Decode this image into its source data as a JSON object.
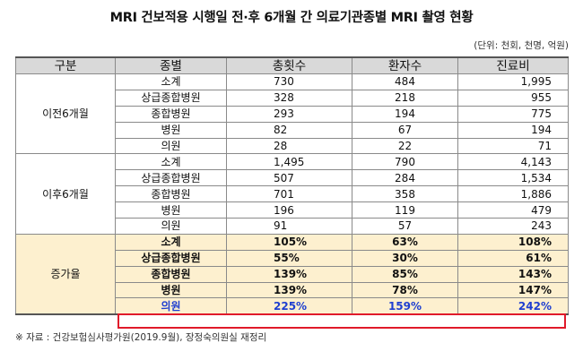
{
  "title": "MRI 건보적용 시행일 전·후 6개월 간 의료기관종별 MRI 촬영 현황",
  "unit": "(단위: 천회, 천명, 억원)",
  "headers": [
    "구분",
    "종별",
    "총횟수",
    "환자수",
    "진료비"
  ],
  "groups": [
    {
      "label": "이전6개월",
      "rows": [
        {
          "kind": "소계",
          "count": "730",
          "patients": "484",
          "cost": "1,995"
        },
        {
          "kind": "상급종합병원",
          "count": "328",
          "patients": "218",
          "cost": "955"
        },
        {
          "kind": "종합병원",
          "count": "293",
          "patients": "194",
          "cost": "775"
        },
        {
          "kind": "병원",
          "count": "82",
          "patients": "67",
          "cost": "194"
        },
        {
          "kind": "의원",
          "count": "28",
          "patients": "22",
          "cost": "71"
        }
      ]
    },
    {
      "label": "이후6개월",
      "rows": [
        {
          "kind": "소계",
          "count": "1,495",
          "patients": "790",
          "cost": "4,143"
        },
        {
          "kind": "상급종합병원",
          "count": "507",
          "patients": "284",
          "cost": "1,534"
        },
        {
          "kind": "종합병원",
          "count": "701",
          "patients": "358",
          "cost": "1,886"
        },
        {
          "kind": "병원",
          "count": "196",
          "patients": "119",
          "cost": "479"
        },
        {
          "kind": "의원",
          "count": "91",
          "patients": "57",
          "cost": "243"
        }
      ]
    },
    {
      "label": "증가율",
      "rows": [
        {
          "kind": "소계",
          "count": "105%",
          "patients": "63%",
          "cost": "108%"
        },
        {
          "kind": "상급종합병원",
          "count": "55%",
          "patients": "30%",
          "cost": "61%"
        },
        {
          "kind": "종합병원",
          "count": "139%",
          "patients": "85%",
          "cost": "143%"
        },
        {
          "kind": "병원",
          "count": "139%",
          "patients": "78%",
          "cost": "147%"
        },
        {
          "kind": "의원",
          "count": "225%",
          "patients": "159%",
          "cost": "242%"
        }
      ]
    }
  ],
  "highlight_color": "#e01a2a",
  "increase_bg": "#fdf0cf",
  "source": "※ 자료 : 건강보험심사평가원(2019.9월), 장정숙의원실 재정리"
}
